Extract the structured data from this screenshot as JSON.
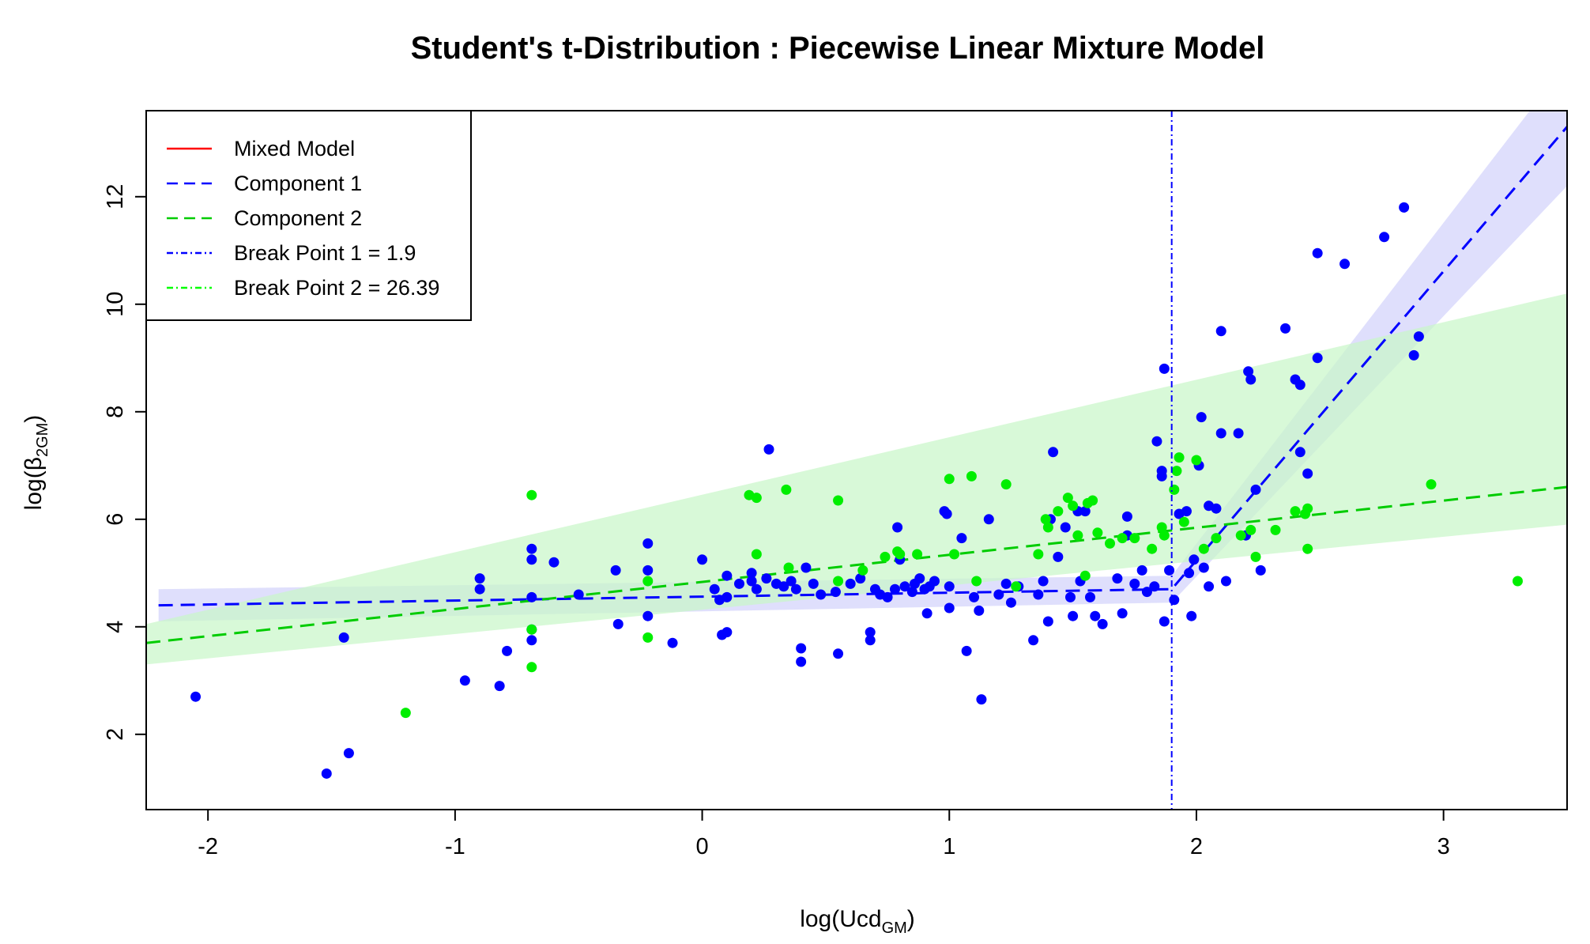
{
  "chart_data": {
    "type": "scatter",
    "title": "Student's t-Distribution : Piecewise Linear Mixture Model",
    "xlabel": {
      "main": "log(Ucd",
      "sub": "GM",
      "close": ")"
    },
    "ylabel": {
      "main": "log(β",
      "sub": "2GM",
      "close": ")"
    },
    "xlim": [
      -2.25,
      3.5
    ],
    "ylim": [
      0.6,
      13.6
    ],
    "xticks": [
      -2,
      -1,
      0,
      1,
      2,
      3
    ],
    "yticks": [
      2,
      4,
      6,
      8,
      10,
      12
    ],
    "xtick_labels": [
      "-2",
      "-1",
      "0",
      "1",
      "2",
      "3"
    ],
    "ytick_labels": [
      "2",
      "4",
      "6",
      "8",
      "10",
      "12"
    ],
    "grid": false,
    "legend_position": "top-left",
    "legend": [
      {
        "label": "Mixed Model",
        "color": "#ff0000",
        "style": "solid"
      },
      {
        "label": "Component 1",
        "color": "#0000ff",
        "style": "dashed"
      },
      {
        "label": "Component 2",
        "color": "#00cc00",
        "style": "dashed"
      },
      {
        "label": "Break Point 1 = 1.9",
        "color": "#0000ff",
        "style": "dotdash"
      },
      {
        "label": "Break Point 2 = 26.39",
        "color": "#00ff00",
        "style": "dotdash"
      }
    ],
    "colors": {
      "component1": "#0000ff",
      "component2": "#00ee00",
      "band1": "#dcdcfc",
      "band2": "#c8f7c8",
      "mixed": "#ff0000"
    },
    "breakpoint_x": 1.9,
    "fit_lines": [
      {
        "name": "Component 1",
        "color": "#0000ff",
        "x": [
          -2.2,
          1.9,
          3.5
        ],
        "y": [
          4.4,
          4.7,
          13.3
        ]
      },
      {
        "name": "Component 2",
        "color": "#00cc00",
        "x": [
          -2.25,
          3.5
        ],
        "y": [
          3.7,
          6.6
        ]
      }
    ],
    "bands": [
      {
        "name": "Component 1",
        "color": "#dcdcfc",
        "x": [
          -2.2,
          1.9,
          3.5
        ],
        "upper": [
          4.7,
          4.95,
          14.5
        ],
        "lower": [
          4.1,
          4.45,
          12.2
        ]
      },
      {
        "name": "Component 2",
        "color": "#c8f7c8",
        "x": [
          -2.25,
          3.5
        ],
        "upper": [
          4.05,
          10.2
        ],
        "lower": [
          3.3,
          5.9
        ]
      }
    ],
    "series": [
      {
        "color": "#0000ff",
        "points": [
          [
            -2.05,
            2.7
          ],
          [
            -1.52,
            1.27
          ],
          [
            -1.45,
            3.8
          ],
          [
            -1.43,
            1.65
          ],
          [
            -0.96,
            3.0
          ],
          [
            -0.9,
            4.9
          ],
          [
            -0.9,
            4.7
          ],
          [
            -0.82,
            2.9
          ],
          [
            -0.79,
            3.55
          ],
          [
            -0.69,
            5.45
          ],
          [
            -0.69,
            5.25
          ],
          [
            -0.69,
            4.55
          ],
          [
            -0.69,
            3.95
          ],
          [
            -0.69,
            3.75
          ],
          [
            -0.6,
            5.2
          ],
          [
            -0.5,
            4.6
          ],
          [
            -0.35,
            5.05
          ],
          [
            -0.34,
            4.05
          ],
          [
            -0.22,
            5.55
          ],
          [
            -0.22,
            5.05
          ],
          [
            -0.22,
            4.2
          ],
          [
            -0.12,
            3.7
          ],
          [
            0.0,
            5.25
          ],
          [
            0.05,
            4.7
          ],
          [
            0.07,
            4.5
          ],
          [
            0.08,
            3.85
          ],
          [
            0.1,
            3.9
          ],
          [
            0.1,
            4.95
          ],
          [
            0.1,
            4.55
          ],
          [
            0.15,
            4.8
          ],
          [
            0.2,
            5.0
          ],
          [
            0.2,
            4.85
          ],
          [
            0.22,
            4.7
          ],
          [
            0.26,
            4.9
          ],
          [
            0.27,
            7.3
          ],
          [
            0.3,
            4.8
          ],
          [
            0.33,
            4.75
          ],
          [
            0.36,
            4.85
          ],
          [
            0.38,
            4.7
          ],
          [
            0.4,
            3.6
          ],
          [
            0.4,
            3.35
          ],
          [
            0.42,
            5.1
          ],
          [
            0.45,
            4.8
          ],
          [
            0.48,
            4.6
          ],
          [
            0.54,
            4.65
          ],
          [
            0.55,
            3.5
          ],
          [
            0.6,
            4.8
          ],
          [
            0.64,
            4.9
          ],
          [
            0.68,
            3.9
          ],
          [
            0.68,
            3.75
          ],
          [
            0.7,
            4.7
          ],
          [
            0.72,
            4.6
          ],
          [
            0.75,
            4.55
          ],
          [
            0.78,
            4.7
          ],
          [
            0.79,
            5.85
          ],
          [
            0.8,
            5.25
          ],
          [
            0.82,
            4.75
          ],
          [
            0.85,
            4.65
          ],
          [
            0.86,
            4.8
          ],
          [
            0.88,
            4.9
          ],
          [
            0.9,
            4.7
          ],
          [
            0.91,
            4.25
          ],
          [
            0.92,
            4.75
          ],
          [
            0.94,
            4.85
          ],
          [
            0.98,
            6.15
          ],
          [
            0.99,
            6.1
          ],
          [
            1.0,
            4.75
          ],
          [
            1.0,
            4.35
          ],
          [
            1.05,
            5.65
          ],
          [
            1.07,
            3.55
          ],
          [
            1.1,
            4.55
          ],
          [
            1.12,
            4.3
          ],
          [
            1.13,
            2.65
          ],
          [
            1.16,
            6.0
          ],
          [
            1.2,
            4.6
          ],
          [
            1.23,
            4.8
          ],
          [
            1.25,
            4.45
          ],
          [
            1.28,
            4.75
          ],
          [
            1.34,
            3.75
          ],
          [
            1.36,
            4.6
          ],
          [
            1.38,
            4.85
          ],
          [
            1.4,
            4.1
          ],
          [
            1.41,
            6.0
          ],
          [
            1.42,
            7.25
          ],
          [
            1.44,
            5.3
          ],
          [
            1.47,
            5.85
          ],
          [
            1.49,
            4.55
          ],
          [
            1.5,
            4.2
          ],
          [
            1.52,
            6.15
          ],
          [
            1.53,
            4.85
          ],
          [
            1.55,
            6.15
          ],
          [
            1.57,
            4.55
          ],
          [
            1.59,
            4.2
          ],
          [
            1.62,
            4.05
          ],
          [
            1.68,
            4.9
          ],
          [
            1.7,
            4.25
          ],
          [
            1.72,
            6.05
          ],
          [
            1.72,
            5.7
          ],
          [
            1.75,
            4.8
          ],
          [
            1.78,
            5.05
          ],
          [
            1.8,
            4.65
          ],
          [
            1.83,
            4.75
          ],
          [
            1.84,
            7.45
          ],
          [
            1.86,
            6.9
          ],
          [
            1.86,
            6.8
          ],
          [
            1.87,
            8.8
          ],
          [
            1.87,
            4.1
          ],
          [
            1.89,
            5.05
          ],
          [
            1.91,
            4.5
          ],
          [
            1.93,
            6.1
          ],
          [
            1.96,
            6.15
          ],
          [
            1.97,
            5.0
          ],
          [
            1.98,
            4.2
          ],
          [
            1.99,
            5.25
          ],
          [
            2.01,
            7.0
          ],
          [
            2.02,
            7.9
          ],
          [
            2.03,
            5.1
          ],
          [
            2.05,
            4.75
          ],
          [
            2.05,
            6.25
          ],
          [
            2.08,
            6.2
          ],
          [
            2.1,
            9.5
          ],
          [
            2.1,
            7.6
          ],
          [
            2.12,
            4.85
          ],
          [
            2.17,
            7.6
          ],
          [
            2.2,
            5.7
          ],
          [
            2.21,
            8.75
          ],
          [
            2.22,
            8.6
          ],
          [
            2.24,
            6.55
          ],
          [
            2.26,
            5.05
          ],
          [
            2.36,
            9.55
          ],
          [
            2.4,
            8.6
          ],
          [
            2.42,
            8.5
          ],
          [
            2.42,
            7.25
          ],
          [
            2.45,
            6.85
          ],
          [
            2.49,
            10.95
          ],
          [
            2.49,
            9.0
          ],
          [
            2.6,
            10.75
          ],
          [
            2.76,
            11.25
          ],
          [
            2.84,
            11.8
          ],
          [
            2.88,
            9.05
          ],
          [
            2.9,
            9.4
          ]
        ]
      },
      {
        "color": "#00ee00",
        "points": [
          [
            -1.2,
            2.4
          ],
          [
            -0.69,
            6.45
          ],
          [
            -0.69,
            3.95
          ],
          [
            -0.69,
            3.25
          ],
          [
            -0.22,
            4.85
          ],
          [
            -0.22,
            3.8
          ],
          [
            0.19,
            6.45
          ],
          [
            0.22,
            6.4
          ],
          [
            0.22,
            5.35
          ],
          [
            0.34,
            6.55
          ],
          [
            0.35,
            5.1
          ],
          [
            0.55,
            6.35
          ],
          [
            0.55,
            4.85
          ],
          [
            0.65,
            5.05
          ],
          [
            0.74,
            5.3
          ],
          [
            0.79,
            5.4
          ],
          [
            0.8,
            5.35
          ],
          [
            0.87,
            5.35
          ],
          [
            1.0,
            6.75
          ],
          [
            1.02,
            5.35
          ],
          [
            1.09,
            6.8
          ],
          [
            1.11,
            4.85
          ],
          [
            1.23,
            6.65
          ],
          [
            1.27,
            4.75
          ],
          [
            1.36,
            5.35
          ],
          [
            1.39,
            6.0
          ],
          [
            1.4,
            5.85
          ],
          [
            1.44,
            6.15
          ],
          [
            1.48,
            6.4
          ],
          [
            1.5,
            6.25
          ],
          [
            1.52,
            5.7
          ],
          [
            1.55,
            4.95
          ],
          [
            1.56,
            6.3
          ],
          [
            1.58,
            6.35
          ],
          [
            1.6,
            5.75
          ],
          [
            1.65,
            5.55
          ],
          [
            1.7,
            5.65
          ],
          [
            1.75,
            5.65
          ],
          [
            1.82,
            5.45
          ],
          [
            1.86,
            5.85
          ],
          [
            1.87,
            5.7
          ],
          [
            1.91,
            6.55
          ],
          [
            1.92,
            6.9
          ],
          [
            1.93,
            7.15
          ],
          [
            1.95,
            5.95
          ],
          [
            2.0,
            7.1
          ],
          [
            2.03,
            5.45
          ],
          [
            2.08,
            5.65
          ],
          [
            2.18,
            5.7
          ],
          [
            2.22,
            5.8
          ],
          [
            2.24,
            5.3
          ],
          [
            2.32,
            5.8
          ],
          [
            2.4,
            6.15
          ],
          [
            2.44,
            6.1
          ],
          [
            2.45,
            6.2
          ],
          [
            2.45,
            5.45
          ],
          [
            2.95,
            6.65
          ],
          [
            3.3,
            4.85
          ]
        ]
      }
    ]
  }
}
